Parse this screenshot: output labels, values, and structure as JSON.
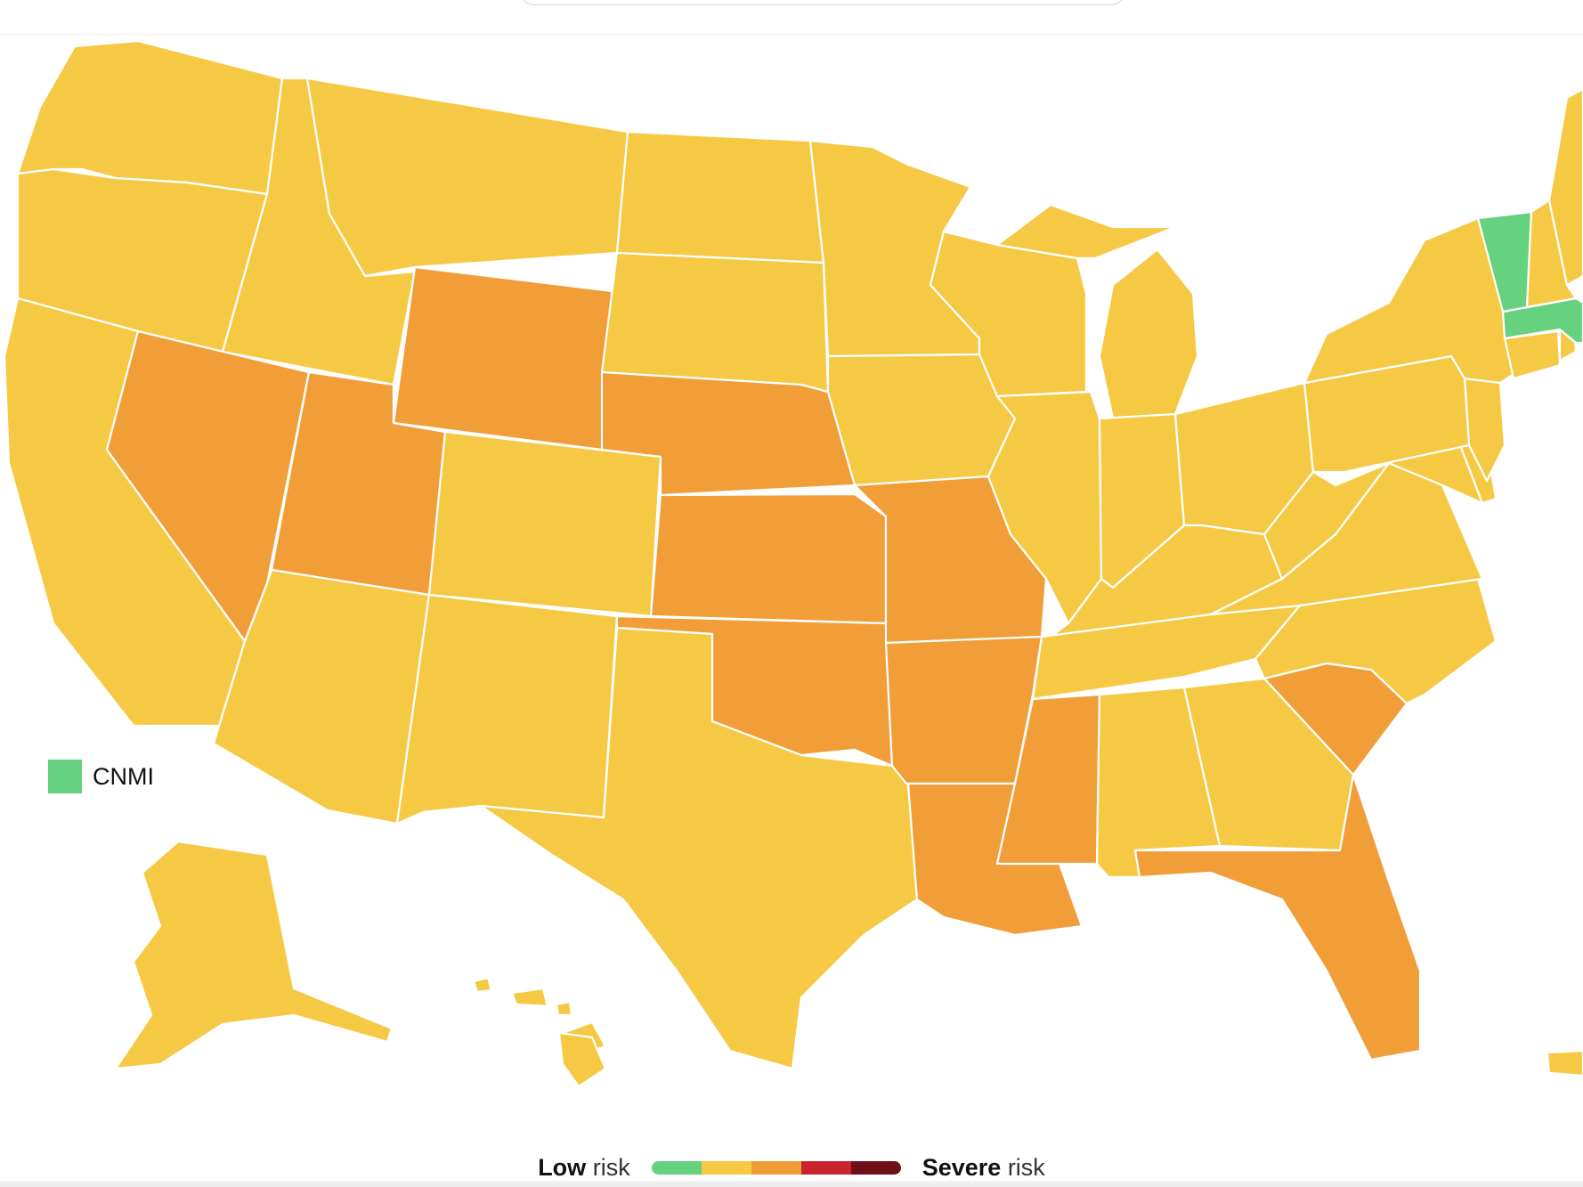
{
  "colors": {
    "low": "#66d17f",
    "moderate": "#f6c945",
    "substantial": "#f19d38",
    "high": "#c9252f",
    "severe": "#6e1018"
  },
  "territory_legend": {
    "label": "CNMI",
    "level": "low"
  },
  "risk_legend": {
    "low_bold": "Low",
    "low_word": "risk",
    "severe_bold": "Severe",
    "severe_word": "risk",
    "scale": [
      "low",
      "moderate",
      "substantial",
      "high",
      "severe"
    ]
  },
  "states": [
    {
      "code": "WA",
      "level": "moderate"
    },
    {
      "code": "OR",
      "level": "moderate"
    },
    {
      "code": "CA",
      "level": "moderate"
    },
    {
      "code": "ID",
      "level": "moderate"
    },
    {
      "code": "NV",
      "level": "substantial"
    },
    {
      "code": "MT",
      "level": "moderate"
    },
    {
      "code": "WY",
      "level": "substantial"
    },
    {
      "code": "UT",
      "level": "substantial"
    },
    {
      "code": "AZ",
      "level": "moderate"
    },
    {
      "code": "CO",
      "level": "moderate"
    },
    {
      "code": "NM",
      "level": "moderate"
    },
    {
      "code": "ND",
      "level": "moderate"
    },
    {
      "code": "SD",
      "level": "moderate"
    },
    {
      "code": "NE",
      "level": "substantial"
    },
    {
      "code": "KS",
      "level": "substantial"
    },
    {
      "code": "OK",
      "level": "substantial"
    },
    {
      "code": "TX",
      "level": "moderate"
    },
    {
      "code": "MN",
      "level": "moderate"
    },
    {
      "code": "IA",
      "level": "moderate"
    },
    {
      "code": "MO",
      "level": "substantial"
    },
    {
      "code": "AR",
      "level": "substantial"
    },
    {
      "code": "LA",
      "level": "substantial"
    },
    {
      "code": "WI",
      "level": "moderate"
    },
    {
      "code": "IL",
      "level": "moderate"
    },
    {
      "code": "MI",
      "level": "moderate"
    },
    {
      "code": "IN",
      "level": "moderate"
    },
    {
      "code": "OH",
      "level": "moderate"
    },
    {
      "code": "KY",
      "level": "moderate"
    },
    {
      "code": "TN",
      "level": "moderate"
    },
    {
      "code": "MS",
      "level": "substantial"
    },
    {
      "code": "AL",
      "level": "moderate"
    },
    {
      "code": "GA",
      "level": "moderate"
    },
    {
      "code": "FL",
      "level": "substantial"
    },
    {
      "code": "SC",
      "level": "substantial"
    },
    {
      "code": "NC",
      "level": "moderate"
    },
    {
      "code": "VA",
      "level": "moderate"
    },
    {
      "code": "WV",
      "level": "moderate"
    },
    {
      "code": "MD",
      "level": "moderate"
    },
    {
      "code": "DE",
      "level": "moderate"
    },
    {
      "code": "NJ",
      "level": "moderate"
    },
    {
      "code": "PA",
      "level": "moderate"
    },
    {
      "code": "NY",
      "level": "moderate"
    },
    {
      "code": "CT",
      "level": "moderate"
    },
    {
      "code": "RI",
      "level": "moderate"
    },
    {
      "code": "MA",
      "level": "low"
    },
    {
      "code": "VT",
      "level": "low"
    },
    {
      "code": "NH",
      "level": "moderate"
    },
    {
      "code": "ME",
      "level": "moderate"
    },
    {
      "code": "AK",
      "level": "moderate"
    },
    {
      "code": "HI",
      "level": "moderate"
    },
    {
      "code": "PR",
      "level": "moderate"
    }
  ]
}
